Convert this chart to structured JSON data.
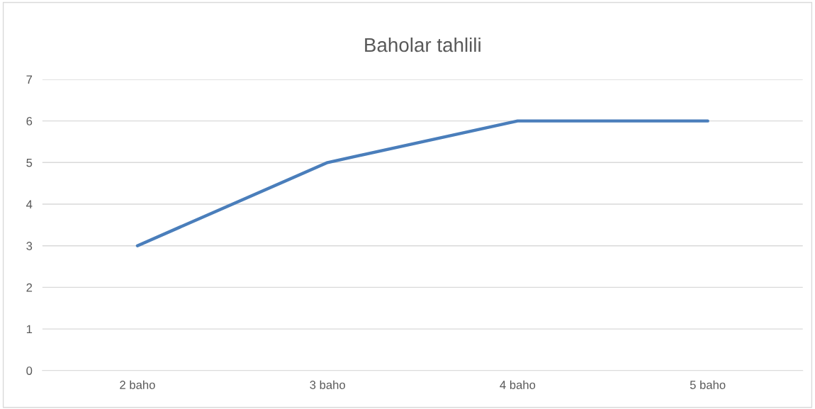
{
  "chart_data": {
    "type": "line",
    "title": "Baholar tahlili",
    "categories": [
      "2 baho",
      "3 baho",
      "4 baho",
      "5 baho"
    ],
    "series": [
      {
        "color": "#4a7ebb",
        "values": [
          3,
          5,
          6,
          6
        ]
      }
    ],
    "ylim": [
      0,
      7
    ],
    "yticks": [
      0,
      1,
      2,
      3,
      4,
      5,
      6,
      7
    ],
    "grid": "y",
    "legend": false,
    "marker": "none",
    "line_style": "solid"
  }
}
